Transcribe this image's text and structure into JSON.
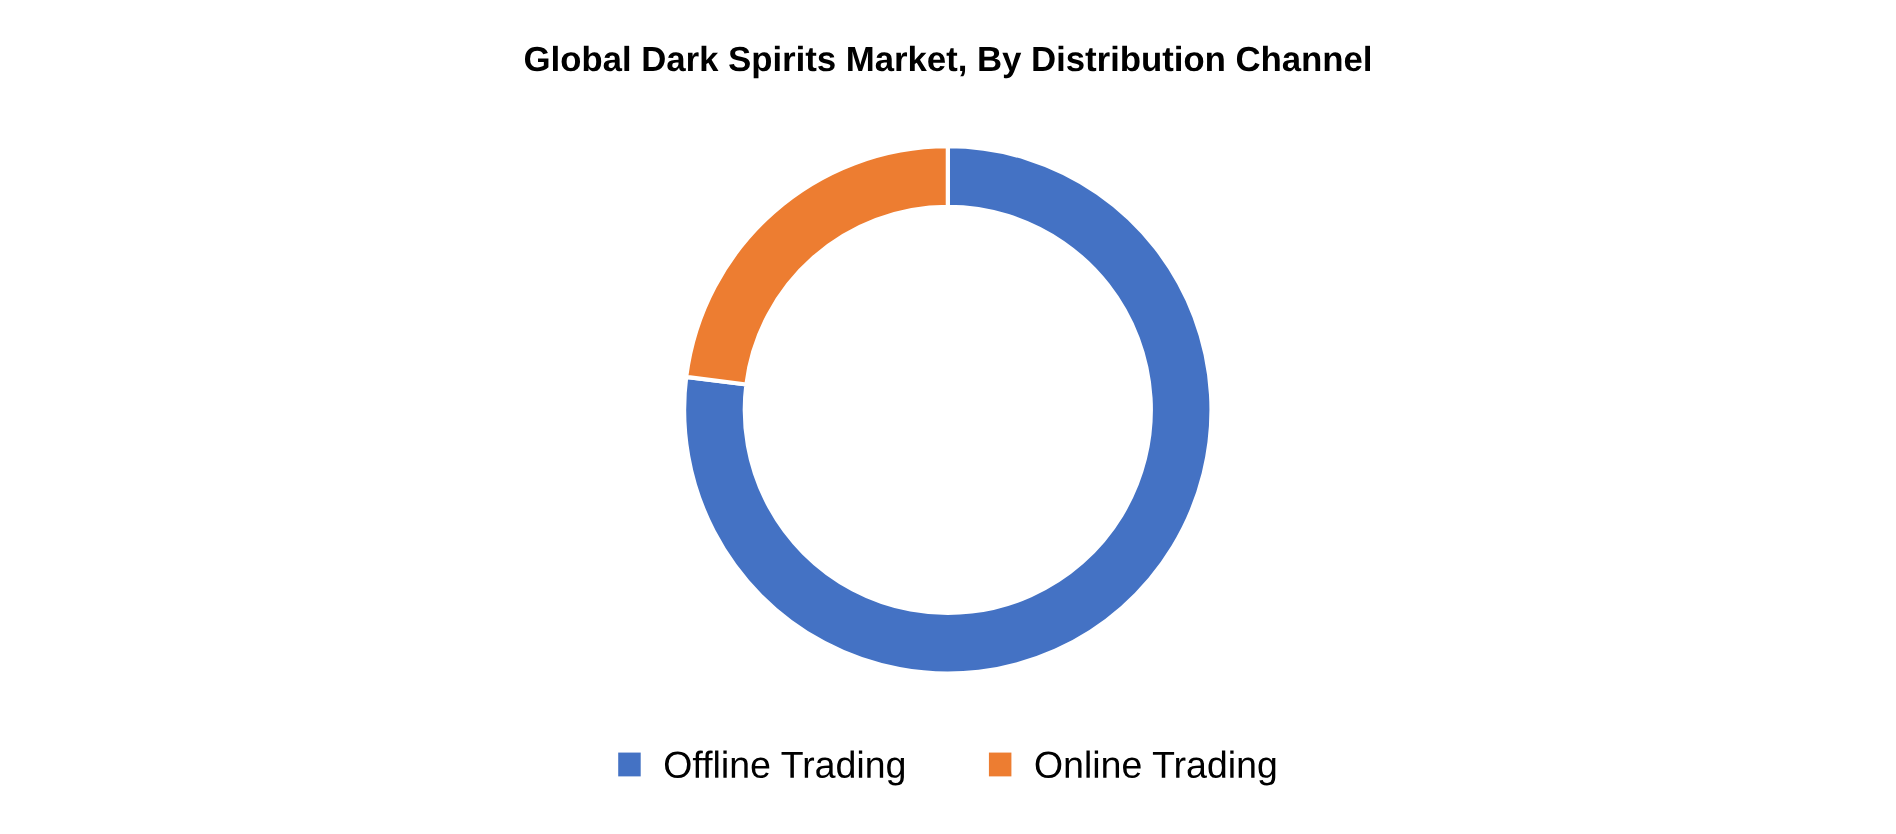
{
  "chart_data": {
    "type": "donut",
    "title": "Global Dark Spirits Market, By Distribution Channel",
    "categories": [
      "Offline Trading",
      "Online Trading"
    ],
    "values": [
      77,
      23
    ],
    "colors": [
      "#4472c4",
      "#ed7d31"
    ],
    "legend": "bottom"
  }
}
